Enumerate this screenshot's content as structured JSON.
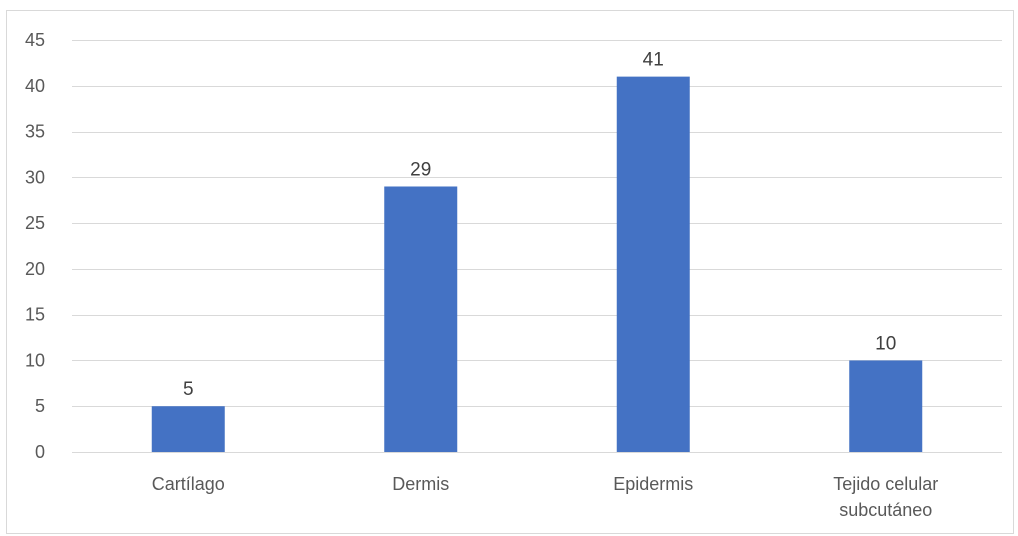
{
  "chart_data": {
    "type": "bar",
    "categories": [
      "Cartílago",
      "Dermis",
      "Epidermis",
      "Tejido celular subcutáneo"
    ],
    "category_label_lines": [
      [
        "Cartílago"
      ],
      [
        "Dermis"
      ],
      [
        "Epidermis"
      ],
      [
        "Tejido celular",
        "subcutáneo"
      ]
    ],
    "values": [
      5,
      29,
      41,
      10
    ],
    "data_labels": [
      "5",
      "29",
      "41",
      "10"
    ],
    "ylim": [
      0,
      45
    ],
    "yticks": [
      0,
      5,
      10,
      15,
      20,
      25,
      30,
      35,
      40,
      45
    ],
    "ytick_labels": [
      "0",
      "5",
      "10",
      "15",
      "20",
      "25",
      "30",
      "35",
      "40",
      "45"
    ],
    "title": "",
    "xlabel": "",
    "ylabel": "",
    "grid": true,
    "legend": "none",
    "colors": {
      "bar": "#4472c4",
      "grid": "#d9d9d9",
      "axis": "#d9d9d9",
      "tick_text": "#595959",
      "label_text": "#404040"
    }
  }
}
